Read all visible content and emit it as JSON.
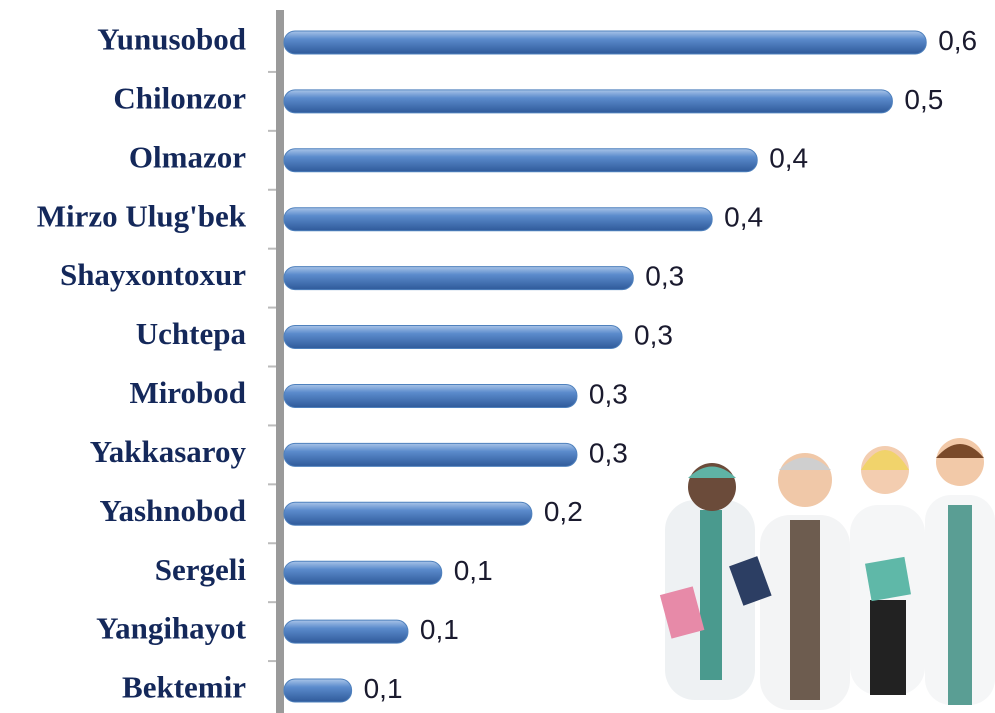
{
  "chart_data": {
    "type": "bar",
    "orientation": "horizontal",
    "categories": [
      "Yunusobod",
      "Chilonzor",
      "Olmazor",
      "Mirzo Ulug'bek",
      "Shayxontoxur",
      "Uchtepa",
      "Mirobod",
      "Yakkasaroy",
      "Yashnobod",
      "Sergeli",
      "Yangihayot",
      "Bektemir"
    ],
    "values": [
      0.57,
      0.54,
      0.42,
      0.38,
      0.31,
      0.3,
      0.26,
      0.26,
      0.22,
      0.14,
      0.11,
      0.06
    ],
    "value_labels": [
      "0,6",
      "0,5",
      "0,4",
      "0,4",
      "0,3",
      "0,3",
      "0,3",
      "0,3",
      "0,2",
      "0,1",
      "0,1",
      "0,1"
    ],
    "color": "#4f81bd",
    "xlim": [
      0,
      0.6
    ]
  }
}
